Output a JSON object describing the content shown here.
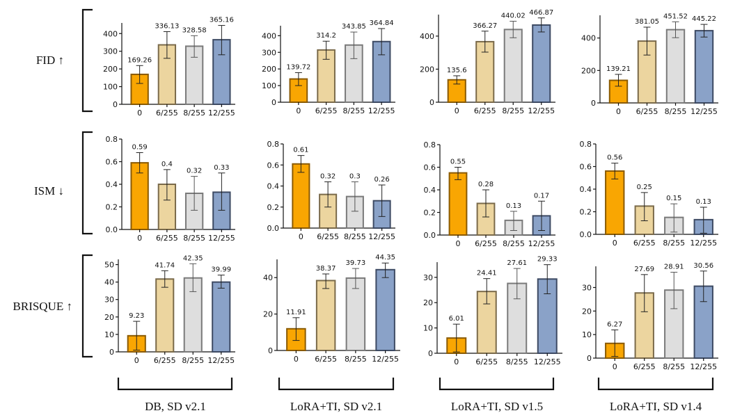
{
  "chart_data": {
    "type": "bar",
    "title": "",
    "categories": [
      "0",
      "6/255",
      "8/255",
      "12/255"
    ],
    "colors": {
      "fills": [
        "#f9a602",
        "#ecd59f",
        "#dedede",
        "#8aa2c8"
      ],
      "edges": [
        "#8a5a00",
        "#7a6a4a",
        "#7a7a7a",
        "#3d4a63"
      ]
    },
    "rows": [
      {
        "label": "FID ↑",
        "metric": "FID",
        "direction": "up"
      },
      {
        "label": "ISM ↓",
        "metric": "ISM",
        "direction": "down"
      },
      {
        "label": "BRISQUE ↑",
        "metric": "BRISQUE",
        "direction": "up"
      }
    ],
    "columns": [
      {
        "label": "DB, SD v2.1"
      },
      {
        "label": "LoRA+TI, SD v2.1"
      },
      {
        "label": "LoRA+TI, SD v1.5"
      },
      {
        "label": "LoRA+TI, SD v1.4"
      }
    ],
    "panels": [
      {
        "row": 0,
        "col": 0,
        "ylim": [
          0,
          460
        ],
        "yticks": [
          0,
          100,
          200,
          300,
          400
        ],
        "ytick_labels": [
          "0",
          "100",
          "200",
          "300",
          "400"
        ],
        "values": [
          169.26,
          336.13,
          328.58,
          365.16
        ],
        "value_labels": [
          "169.26",
          "336.13",
          "328.58",
          "365.16"
        ],
        "err_low": [
          118,
          260,
          266,
          280
        ],
        "err_high": [
          219,
          411,
          388,
          446
        ]
      },
      {
        "row": 0,
        "col": 1,
        "ylim": [
          0,
          460
        ],
        "yticks": [
          0,
          100,
          200,
          300,
          400
        ],
        "ytick_labels": [
          "0",
          "100",
          "200",
          "300",
          "400"
        ],
        "values": [
          139.72,
          314.2,
          343.85,
          364.84
        ],
        "value_labels": [
          "139.72",
          "314.2",
          "343.85",
          "364.84"
        ],
        "err_low": [
          100,
          258,
          262,
          285
        ],
        "err_high": [
          178,
          367,
          422,
          443
        ]
      },
      {
        "row": 0,
        "col": 2,
        "ylim": [
          0,
          530
        ],
        "yticks": [
          0,
          200,
          400
        ],
        "ytick_labels": [
          "0",
          "200",
          "400"
        ],
        "values": [
          135.6,
          366.27,
          440.02,
          466.87
        ],
        "value_labels": [
          "135.6",
          "366.27",
          "440.02",
          "466.87"
        ],
        "err_low": [
          110,
          303,
          390,
          425
        ],
        "err_high": [
          160,
          430,
          490,
          510
        ]
      },
      {
        "row": 0,
        "col": 3,
        "ylim": [
          0,
          540
        ],
        "yticks": [
          0,
          200,
          400
        ],
        "ytick_labels": [
          "0",
          "200",
          "400"
        ],
        "values": [
          139.21,
          381.05,
          451.52,
          445.22
        ],
        "value_labels": [
          "139.21",
          "381.05",
          "451.52",
          "445.22"
        ],
        "err_low": [
          103,
          295,
          402,
          406
        ],
        "err_high": [
          176,
          467,
          500,
          484
        ]
      },
      {
        "row": 1,
        "col": 0,
        "ylim": [
          0,
          0.8
        ],
        "yticks": [
          0,
          0.2,
          0.4,
          0.6,
          0.8
        ],
        "ytick_labels": [
          "0.0",
          "0.2",
          "0.4",
          "0.6",
          "0.8"
        ],
        "values": [
          0.59,
          0.4,
          0.32,
          0.33
        ],
        "value_labels": [
          "0.59",
          "0.4",
          "0.32",
          "0.33"
        ],
        "err_low": [
          0.5,
          0.26,
          0.17,
          0.17
        ],
        "err_high": [
          0.68,
          0.53,
          0.47,
          0.5
        ]
      },
      {
        "row": 1,
        "col": 1,
        "ylim": [
          0,
          0.8
        ],
        "yticks": [
          0,
          0.2,
          0.4,
          0.6,
          0.8
        ],
        "ytick_labels": [
          "0.0",
          "0.2",
          "0.4",
          "0.6",
          "0.8"
        ],
        "values": [
          0.61,
          0.32,
          0.3,
          0.26
        ],
        "value_labels": [
          "0.61",
          "0.32",
          "0.3",
          "0.26"
        ],
        "err_low": [
          0.53,
          0.2,
          0.16,
          0.11
        ],
        "err_high": [
          0.69,
          0.44,
          0.44,
          0.41
        ]
      },
      {
        "row": 1,
        "col": 2,
        "ylim": [
          0,
          0.8
        ],
        "yticks": [
          0,
          0.2,
          0.4,
          0.6,
          0.8
        ],
        "ytick_labels": [
          "0.0",
          "0.2",
          "0.4",
          "0.6",
          "0.8"
        ],
        "values": [
          0.55,
          0.28,
          0.13,
          0.17
        ],
        "value_labels": [
          "0.55",
          "0.28",
          "0.13",
          "0.17"
        ],
        "err_low": [
          0.49,
          0.16,
          0.04,
          0.04
        ],
        "err_high": [
          0.6,
          0.4,
          0.21,
          0.3
        ]
      },
      {
        "row": 1,
        "col": 3,
        "ylim": [
          0,
          0.8
        ],
        "yticks": [
          0,
          0.2,
          0.4,
          0.6,
          0.8
        ],
        "ytick_labels": [
          "0.0",
          "0.2",
          "0.4",
          "0.6",
          "0.8"
        ],
        "values": [
          0.56,
          0.25,
          0.15,
          0.13
        ],
        "value_labels": [
          "0.56",
          "0.25",
          "0.15",
          "0.13"
        ],
        "err_low": [
          0.49,
          0.12,
          0.02,
          0.01
        ],
        "err_high": [
          0.63,
          0.37,
          0.27,
          0.24
        ]
      },
      {
        "row": 2,
        "col": 0,
        "ylim": [
          0,
          53
        ],
        "yticks": [
          0,
          10,
          20,
          30,
          40,
          50
        ],
        "ytick_labels": [
          "0",
          "10",
          "20",
          "30",
          "40",
          "50"
        ],
        "values": [
          9.23,
          41.74,
          42.35,
          39.99
        ],
        "value_labels": [
          "9.23",
          "41.74",
          "42.35",
          "39.99"
        ],
        "err_low": [
          1,
          37,
          34.5,
          36.5
        ],
        "err_high": [
          17.5,
          46.5,
          50.5,
          44
        ]
      },
      {
        "row": 2,
        "col": 1,
        "ylim": [
          0,
          50
        ],
        "yticks": [
          0,
          20,
          40
        ],
        "ytick_labels": [
          "0",
          "20",
          "40"
        ],
        "values": [
          11.91,
          38.37,
          39.73,
          44.35
        ],
        "value_labels": [
          "11.91",
          "38.37",
          "39.73",
          "44.35"
        ],
        "err_low": [
          5.5,
          34,
          34,
          40
        ],
        "err_high": [
          18,
          42,
          45,
          48
        ]
      },
      {
        "row": 2,
        "col": 2,
        "ylim": [
          0,
          36
        ],
        "yticks": [
          0,
          10,
          20,
          30
        ],
        "ytick_labels": [
          "0",
          "10",
          "20",
          "30"
        ],
        "values": [
          6.01,
          24.41,
          27.61,
          29.33
        ],
        "value_labels": [
          "6.01",
          "24.41",
          "27.61",
          "29.33"
        ],
        "err_low": [
          0.5,
          19.5,
          21.5,
          23.5
        ],
        "err_high": [
          11.5,
          29.5,
          33.5,
          35
        ]
      },
      {
        "row": 2,
        "col": 3,
        "ylim": [
          0,
          39
        ],
        "yticks": [
          0,
          10,
          20,
          30
        ],
        "ytick_labels": [
          "0",
          "10",
          "20",
          "30"
        ],
        "values": [
          6.27,
          27.69,
          28.91,
          30.56
        ],
        "value_labels": [
          "6.27",
          "27.69",
          "28.91",
          "30.56"
        ],
        "err_low": [
          0.7,
          19.7,
          21,
          24
        ],
        "err_high": [
          12,
          35.5,
          36.5,
          37
        ]
      }
    ]
  }
}
